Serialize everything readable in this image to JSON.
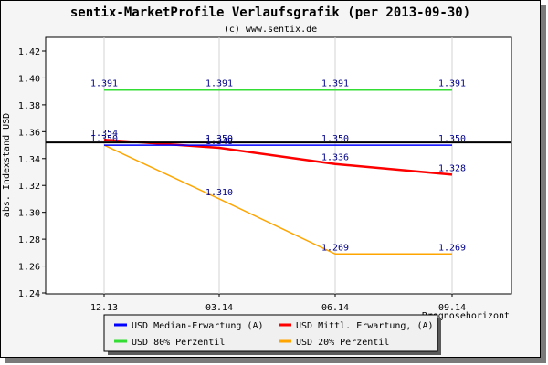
{
  "chart_data": {
    "type": "line",
    "title": "sentix-MarketProfile Verlaufsgrafik (per 2013-09-30)",
    "subtitle": "(c) www.sentix.de",
    "ylabel": "abs. Indexstand USD",
    "xlabel": "Prognosehorizont",
    "categories": [
      "12.13",
      "03.14",
      "06.14",
      "09.14"
    ],
    "ylim": [
      1.24,
      1.42
    ],
    "yticks": [
      "1.24",
      "1.26",
      "1.28",
      "1.30",
      "1.32",
      "1.34",
      "1.36",
      "1.38",
      "1.40",
      "1.42"
    ],
    "reference_line": 1.352,
    "grid": "vertical",
    "series": [
      {
        "name": "USD Median-Erwartung (A)",
        "color": "#0000ff",
        "values": [
          1.35,
          1.35,
          1.35,
          1.35
        ],
        "labels": [
          "1.350",
          "1.350",
          "1.350",
          "1.350"
        ]
      },
      {
        "name": "USD Mittl. Erwartung, (A)",
        "color": "#ff0000",
        "values": [
          1.354,
          1.348,
          1.336,
          1.328
        ],
        "labels": [
          "1.354",
          "1.348",
          "1.336",
          "1.328"
        ]
      },
      {
        "name": "USD 80% Perzentil",
        "color": "#33dd33",
        "values": [
          1.391,
          1.391,
          1.391,
          1.391
        ],
        "labels": [
          "1.391",
          "1.391",
          "1.391",
          "1.391"
        ]
      },
      {
        "name": "USD 20% Perzentil",
        "color": "#ffa500",
        "values": [
          1.35,
          1.31,
          1.269,
          1.269
        ],
        "labels": [
          "",
          "1.310",
          "1.269",
          "1.269"
        ]
      }
    ],
    "legend_position": "bottom"
  }
}
